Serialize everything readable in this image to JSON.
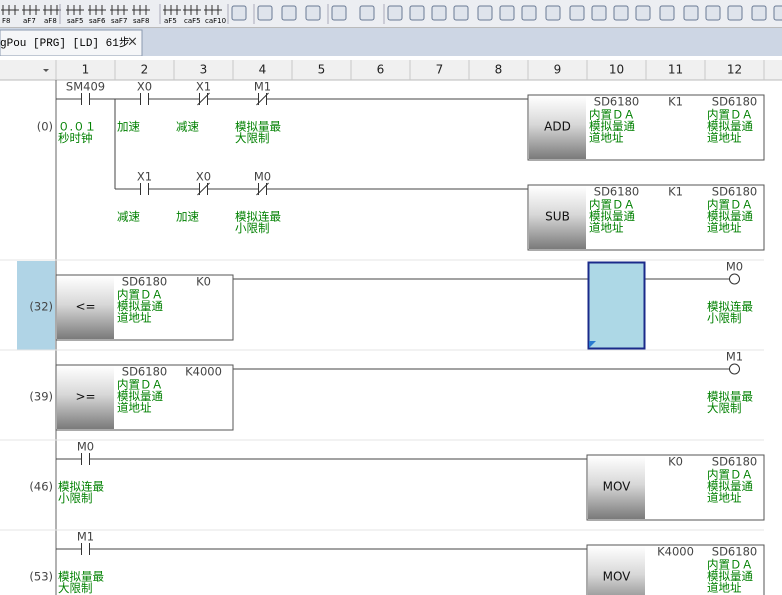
{
  "toolbar": {
    "labels": [
      "F8",
      "aF7",
      "aF8",
      "saF5",
      "saF6",
      "saF7",
      "saF8",
      "aF5",
      "caF5",
      "caF10"
    ]
  },
  "tab": {
    "title": "gPou [PRG] [LD] 61步",
    "close": "×"
  },
  "columns": [
    "1",
    "2",
    "3",
    "4",
    "5",
    "6",
    "7",
    "8",
    "9",
    "10",
    "11",
    "12"
  ],
  "rows": [
    {
      "step": "(0)",
      "cells": [
        {
          "kind": "no",
          "device": "SM409",
          "comment": [
            "０.０１",
            "秒时钟"
          ]
        },
        {
          "kind": "no",
          "device": "X0",
          "comment": [
            "加速"
          ]
        },
        {
          "kind": "nc",
          "device": "X1",
          "comment": [
            "减速"
          ]
        },
        {
          "kind": "nc",
          "device": "M1",
          "comment": [
            "模拟量最",
            "大限制"
          ]
        },
        null,
        null,
        null,
        null,
        {
          "kind": "instruction",
          "device": "ADD"
        },
        {
          "kind": "operand",
          "device": "SD6180",
          "comment": [
            "内置ＤＡ",
            "模拟量通",
            "道地址"
          ]
        },
        {
          "kind": "operand",
          "device": "K1"
        },
        {
          "kind": "operand",
          "device": "SD6180",
          "comment": [
            "内置ＤＡ",
            "模拟量通",
            "道地址"
          ]
        }
      ]
    },
    {
      "cells": [
        null,
        {
          "kind": "no",
          "device": "X1",
          "comment": [
            "减速"
          ]
        },
        {
          "kind": "nc",
          "device": "X0",
          "comment": [
            "加速"
          ]
        },
        {
          "kind": "nc",
          "device": "M0",
          "comment": [
            "模拟连最",
            "小限制"
          ]
        },
        null,
        null,
        null,
        null,
        {
          "kind": "instruction",
          "device": "SUB"
        },
        {
          "kind": "operand",
          "device": "SD6180",
          "comment": [
            "内置ＤＡ",
            "模拟量通",
            "道地址"
          ]
        },
        {
          "kind": "operand",
          "device": "K1"
        },
        {
          "kind": "operand",
          "device": "SD6180",
          "comment": [
            "内置ＤＡ",
            "模拟量通",
            "道地址"
          ]
        }
      ]
    },
    {
      "step": "(32)",
      "cells": [
        {
          "kind": "instruction",
          "device": "<="
        },
        {
          "kind": "operand",
          "device": "SD6180",
          "comment": [
            "内置ＤＡ",
            "模拟量通",
            "道地址"
          ]
        },
        {
          "kind": "operand",
          "device": "K0"
        },
        null,
        null,
        null,
        null,
        null,
        null,
        null,
        null,
        {
          "kind": "coil",
          "device": "M0",
          "comment": [
            "模拟连最",
            "小限制"
          ]
        }
      ]
    },
    {
      "step": "(39)",
      "cells": [
        {
          "kind": "instruction",
          "device": ">="
        },
        {
          "kind": "operand",
          "device": "SD6180",
          "comment": [
            "内置ＤＡ",
            "模拟量通",
            "道地址"
          ]
        },
        {
          "kind": "operand",
          "device": "K4000"
        },
        null,
        null,
        null,
        null,
        null,
        null,
        null,
        null,
        {
          "kind": "coil",
          "device": "M1",
          "comment": [
            "模拟量最",
            "大限制"
          ]
        }
      ]
    },
    {
      "step": "(46)",
      "cells": [
        {
          "kind": "no",
          "device": "M0",
          "comment": [
            "模拟连最",
            "小限制"
          ]
        },
        null,
        null,
        null,
        null,
        null,
        null,
        null,
        null,
        {
          "kind": "instruction",
          "device": "MOV"
        },
        {
          "kind": "operand",
          "device": "K0"
        },
        {
          "kind": "operand",
          "device": "SD6180",
          "comment": [
            "内置ＤＡ",
            "模拟量通",
            "道地址"
          ]
        }
      ]
    },
    {
      "step": "(53)",
      "cells": [
        {
          "kind": "no",
          "device": "M1",
          "comment": [
            "模拟量最",
            "大限制"
          ]
        },
        null,
        null,
        null,
        null,
        null,
        null,
        null,
        null,
        {
          "kind": "instruction",
          "device": "MOV"
        },
        {
          "kind": "operand",
          "device": "K4000"
        },
        {
          "kind": "operand",
          "device": "SD6180",
          "comment": [
            "内置ＤＡ",
            "模拟量通",
            "道地址"
          ]
        }
      ]
    }
  ]
}
